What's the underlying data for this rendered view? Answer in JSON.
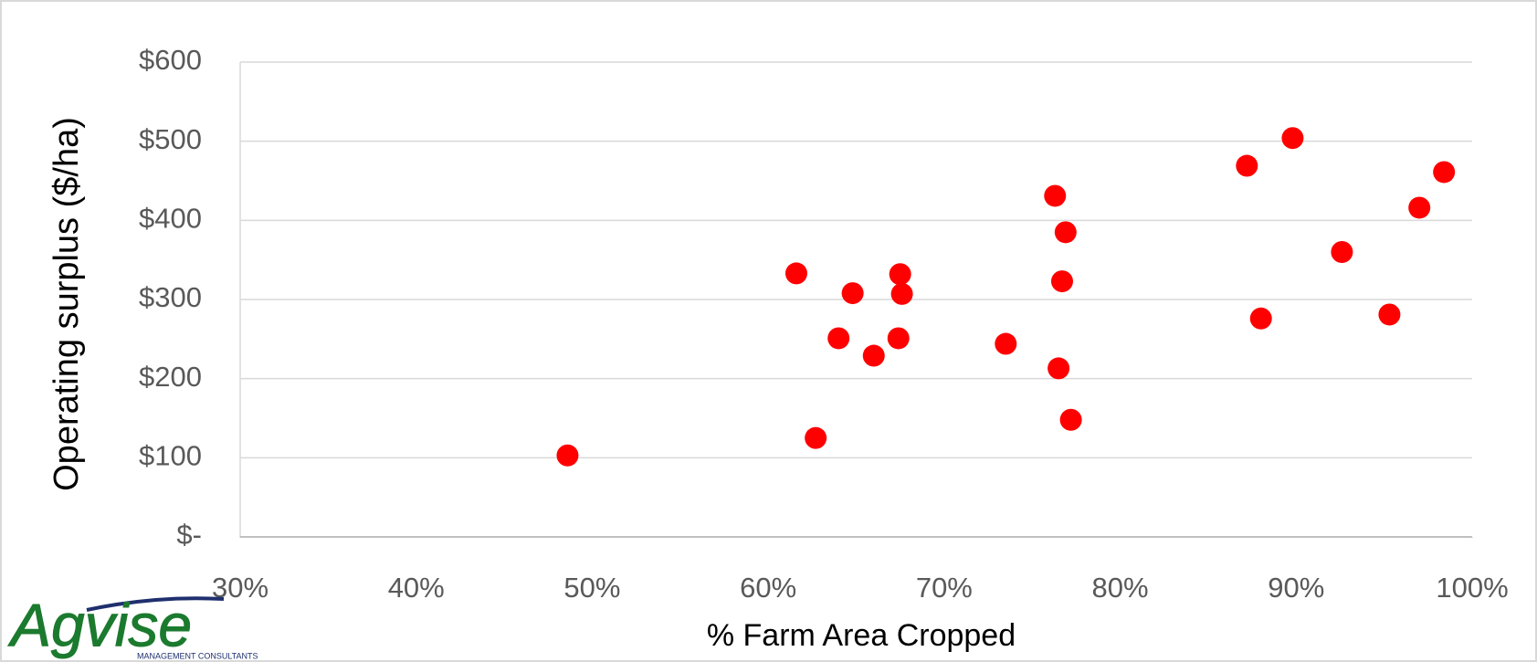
{
  "chart_data": {
    "type": "scatter",
    "x_label": "% Farm Area Cropped",
    "y_label": "Operating surplus ($/ha)",
    "color": "#ff0000",
    "grid": true,
    "xlim": [
      30,
      100
    ],
    "ylim": [
      0,
      600
    ],
    "xticks": [
      {
        "value": 30,
        "label": "30%"
      },
      {
        "value": 40,
        "label": "40%"
      },
      {
        "value": 50,
        "label": "50%"
      },
      {
        "value": 60,
        "label": "60%"
      },
      {
        "value": 70,
        "label": "70%"
      },
      {
        "value": 80,
        "label": "80%"
      },
      {
        "value": 90,
        "label": "90%"
      },
      {
        "value": 100,
        "label": "100%"
      }
    ],
    "yticks": [
      {
        "value": 0,
        "label": "$-"
      },
      {
        "value": 100,
        "label": "$100"
      },
      {
        "value": 200,
        "label": "$200"
      },
      {
        "value": 300,
        "label": "$300"
      },
      {
        "value": 400,
        "label": "$400"
      },
      {
        "value": 500,
        "label": "$500"
      },
      {
        "value": 600,
        "label": "$600"
      }
    ],
    "x": [
      48.6,
      61.6,
      62.7,
      64.0,
      64.8,
      66.0,
      67.4,
      67.5,
      67.6,
      73.5,
      76.3,
      76.5,
      76.7,
      76.9,
      77.2,
      87.2,
      88.0,
      89.8,
      92.6,
      95.3,
      97.0,
      98.4
    ],
    "values": [
      103,
      333,
      125,
      251,
      308,
      229,
      251,
      332,
      307,
      244,
      431,
      213,
      323,
      385,
      148,
      469,
      276,
      504,
      360,
      281,
      416,
      461
    ]
  },
  "logo": {
    "name": "Agvise",
    "tagline": "MANAGEMENT CONSULTANTS"
  }
}
